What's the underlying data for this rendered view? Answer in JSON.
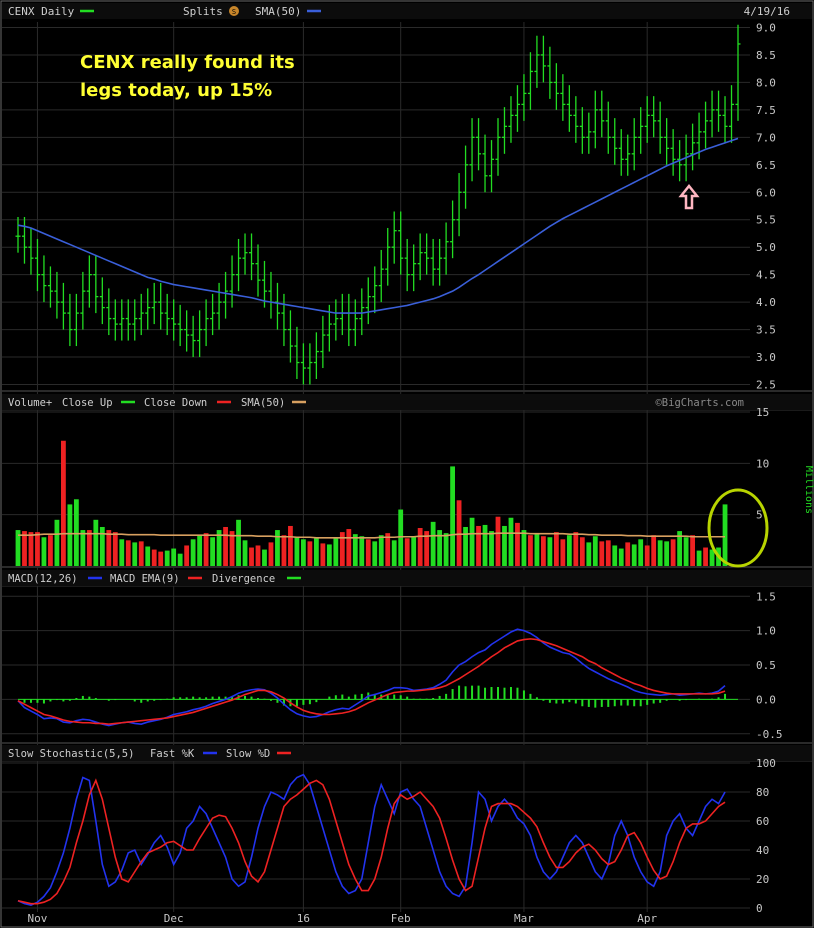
{
  "header": {
    "title": "CENX Daily",
    "splits_label": "Splits",
    "splits_badge": "S",
    "sma_label": "SMA(50)",
    "date": "4/19/16"
  },
  "annotation": {
    "line1": "CENX really found its",
    "line2": "legs today, up 15%"
  },
  "volume_header": {
    "title": "Volume+",
    "close_up_label": "Close Up",
    "close_down_label": "Close Down",
    "sma_label": "SMA(50)",
    "watermark": "©BigCharts.com",
    "unit_label": "Millions"
  },
  "macd_header": {
    "title": "MACD(12,26)",
    "ema_label": "MACD EMA(9)",
    "divergence_label": "Divergence"
  },
  "stoch_header": {
    "title": "Slow Stochastic(5,5)",
    "fast_label": "Fast %K",
    "slow_label": "Slow %D"
  },
  "x_axis": {
    "labels": [
      "Nov",
      "Dec",
      "16",
      "Feb",
      "Mar",
      "Apr"
    ],
    "label_index": [
      3,
      24,
      44,
      59,
      78,
      97
    ]
  },
  "colors": {
    "up": "#22dd22",
    "down": "#ee2222",
    "sma": "#3a5fd9",
    "volume_sma": "#d8a060",
    "macd": "#2233ee",
    "signal": "#ee2222",
    "fast_k": "#2233ee",
    "slow_d": "#ee2222",
    "annotation": "#ffff33",
    "arrow": "#ffb6c1",
    "circle": "#b8d400"
  },
  "chart_data": [
    {
      "name": "price",
      "type": "line",
      "title": "CENX Daily",
      "ylim": [
        2.4,
        9.1
      ],
      "yticks": [
        "2.5",
        "3.0",
        "3.5",
        "4.0",
        "4.5",
        "5.0",
        "5.5",
        "6.0",
        "6.5",
        "7.0",
        "7.5",
        "8.0",
        "8.5",
        "9.0"
      ],
      "close": [
        5.2,
        5.0,
        4.8,
        4.5,
        4.3,
        4.2,
        4.0,
        3.8,
        3.5,
        3.8,
        4.2,
        4.5,
        4.1,
        3.9,
        3.7,
        3.6,
        3.7,
        3.6,
        3.7,
        3.8,
        3.9,
        4.0,
        3.8,
        3.7,
        3.6,
        3.5,
        3.4,
        3.3,
        3.5,
        3.7,
        3.8,
        4.0,
        4.2,
        4.5,
        4.8,
        4.9,
        4.7,
        4.4,
        4.2,
        4.0,
        3.8,
        3.5,
        3.2,
        2.9,
        2.8,
        2.9,
        3.1,
        3.4,
        3.6,
        3.7,
        3.8,
        3.5,
        3.7,
        3.9,
        4.1,
        4.3,
        4.6,
        5.0,
        5.3,
        4.8,
        4.5,
        4.7,
        4.9,
        4.8,
        4.6,
        4.8,
        5.1,
        5.5,
        6.0,
        6.5,
        7.0,
        6.7,
        6.3,
        6.6,
        7.0,
        7.2,
        7.4,
        7.6,
        7.8,
        8.2,
        8.5,
        8.3,
        8.0,
        7.8,
        7.6,
        7.4,
        7.2,
        7.0,
        7.1,
        7.5,
        7.3,
        7.0,
        6.8,
        6.6,
        6.7,
        7.0,
        7.2,
        7.4,
        7.3,
        7.0,
        6.8,
        6.6,
        6.5,
        6.7,
        6.9,
        7.1,
        7.3,
        7.5,
        7.4,
        7.2,
        7.6,
        8.7
      ],
      "sma50": [
        5.4,
        5.38,
        5.35,
        5.3,
        5.25,
        5.2,
        5.15,
        5.1,
        5.05,
        5.0,
        4.95,
        4.9,
        4.85,
        4.8,
        4.75,
        4.7,
        4.65,
        4.6,
        4.55,
        4.5,
        4.45,
        4.42,
        4.38,
        4.35,
        4.32,
        4.3,
        4.28,
        4.26,
        4.24,
        4.22,
        4.2,
        4.18,
        4.16,
        4.14,
        4.12,
        4.1,
        4.08,
        4.05,
        4.02,
        4.0,
        3.98,
        3.96,
        3.94,
        3.92,
        3.9,
        3.88,
        3.86,
        3.84,
        3.82,
        3.8,
        3.8,
        3.8,
        3.8,
        3.8,
        3.82,
        3.84,
        3.86,
        3.88,
        3.9,
        3.92,
        3.94,
        3.97,
        4.0,
        4.03,
        4.06,
        4.1,
        4.15,
        4.2,
        4.27,
        4.35,
        4.43,
        4.5,
        4.58,
        4.66,
        4.74,
        4.82,
        4.9,
        4.98,
        5.06,
        5.14,
        5.22,
        5.3,
        5.38,
        5.45,
        5.52,
        5.58,
        5.64,
        5.7,
        5.76,
        5.82,
        5.88,
        5.94,
        6.0,
        6.06,
        6.12,
        6.18,
        6.24,
        6.3,
        6.36,
        6.42,
        6.48,
        6.53,
        6.58,
        6.63,
        6.68,
        6.73,
        6.78,
        6.82,
        6.86,
        6.9,
        6.94,
        6.98
      ]
    },
    {
      "name": "volume",
      "type": "bar",
      "unit": "Millions",
      "ylim": [
        0,
        15
      ],
      "yticks": [
        "5",
        "10",
        "15"
      ],
      "values": [
        3.5,
        3.4,
        3.3,
        3.3,
        2.8,
        3.0,
        4.5,
        12.2,
        6.0,
        6.5,
        3.5,
        3.5,
        4.5,
        3.8,
        3.5,
        3.3,
        2.6,
        2.5,
        2.3,
        2.4,
        1.9,
        1.6,
        1.4,
        1.5,
        1.7,
        1.2,
        2.0,
        2.6,
        3.0,
        3.2,
        2.8,
        3.5,
        3.8,
        3.4,
        4.5,
        2.5,
        1.8,
        2.0,
        1.6,
        2.3,
        3.5,
        3.0,
        3.9,
        2.8,
        2.6,
        2.4,
        2.7,
        2.2,
        2.1,
        2.8,
        3.3,
        3.6,
        3.1,
        2.9,
        2.6,
        2.4,
        3.0,
        3.2,
        2.5,
        5.5,
        2.7,
        2.9,
        3.7,
        3.4,
        4.3,
        3.5,
        3.2,
        9.7,
        6.4,
        3.8,
        4.7,
        3.9,
        4.0,
        3.4,
        4.8,
        3.9,
        4.7,
        4.2,
        3.5,
        3.0,
        3.1,
        2.9,
        2.8,
        3.3,
        2.6,
        3.0,
        3.3,
        2.8,
        2.3,
        2.9,
        2.4,
        2.5,
        2.0,
        1.7,
        2.3,
        2.1,
        2.6,
        2.0,
        3.0,
        2.5,
        2.4,
        2.6,
        3.4,
        2.8,
        3.0,
        1.5,
        1.8,
        1.6,
        1.8,
        6.0
      ],
      "up": [
        1,
        0,
        0,
        0,
        1,
        0,
        1,
        0,
        1,
        1,
        1,
        0,
        1,
        1,
        0,
        0,
        1,
        0,
        1,
        0,
        1,
        0,
        0,
        1,
        1,
        1,
        0,
        1,
        1,
        0,
        1,
        1,
        0,
        0,
        1,
        1,
        0,
        0,
        1,
        0,
        1,
        0,
        0,
        1,
        1,
        0,
        1,
        0,
        1,
        1,
        0,
        0,
        1,
        1,
        0,
        1,
        1,
        0,
        1,
        1,
        0,
        1,
        0,
        0,
        1,
        1,
        1,
        1,
        0,
        1,
        1,
        0,
        1,
        1,
        0,
        1,
        1,
        0,
        1,
        0,
        1,
        0,
        1,
        0,
        0,
        1,
        0,
        0,
        1,
        1,
        0,
        0,
        1,
        1,
        0,
        1,
        1,
        0,
        0,
        1,
        1,
        0,
        1,
        1,
        0,
        1,
        0,
        1,
        1,
        1
      ],
      "sma50": [
        3.0,
        3.0,
        3.0,
        3.05,
        3.1,
        3.1,
        3.1,
        3.15,
        3.15,
        3.15,
        3.15,
        3.15,
        3.15,
        3.15,
        3.1,
        3.1,
        3.1,
        3.05,
        3.05,
        3.05,
        3.05,
        3.05,
        3.0,
        3.0,
        3.0,
        3.0,
        3.0,
        3.0,
        3.0,
        3.0,
        3.0,
        3.0,
        3.0,
        2.95,
        2.95,
        2.95,
        2.95,
        2.9,
        2.9,
        2.9,
        2.85,
        2.85,
        2.85,
        2.8,
        2.8,
        2.8,
        2.75,
        2.75,
        2.75,
        2.75,
        2.75,
        2.75,
        2.75,
        2.75,
        2.75,
        2.75,
        2.8,
        2.8,
        2.8,
        2.85,
        2.85,
        2.85,
        2.9,
        2.9,
        2.95,
        2.95,
        2.95,
        3.05,
        3.1,
        3.1,
        3.15,
        3.15,
        3.15,
        3.15,
        3.2,
        3.2,
        3.2,
        3.2,
        3.2,
        3.15,
        3.15,
        3.15,
        3.15,
        3.15,
        3.15,
        3.1,
        3.1,
        3.1,
        3.05,
        3.05,
        3.0,
        3.0,
        3.0,
        3.0,
        2.95,
        2.95,
        2.95,
        2.9,
        2.9,
        2.9,
        2.9,
        2.9,
        2.9,
        2.9,
        2.85,
        2.85,
        2.85,
        2.85,
        2.85,
        2.85
      ]
    },
    {
      "name": "macd",
      "type": "line",
      "ylim": [
        -0.62,
        1.62
      ],
      "yticks": [
        "-0.5",
        "0.0",
        "0.5",
        "1.0",
        "1.5"
      ],
      "macd": [
        -0.02,
        -0.12,
        -0.17,
        -0.22,
        -0.28,
        -0.27,
        -0.28,
        -0.33,
        -0.34,
        -0.31,
        -0.29,
        -0.3,
        -0.33,
        -0.36,
        -0.38,
        -0.36,
        -0.34,
        -0.33,
        -0.35,
        -0.36,
        -0.33,
        -0.31,
        -0.29,
        -0.26,
        -0.22,
        -0.2,
        -0.18,
        -0.15,
        -0.13,
        -0.1,
        -0.06,
        -0.03,
        0.0,
        0.04,
        0.09,
        0.12,
        0.14,
        0.15,
        0.14,
        0.09,
        0.02,
        -0.07,
        -0.15,
        -0.21,
        -0.24,
        -0.26,
        -0.25,
        -0.22,
        -0.18,
        -0.15,
        -0.13,
        -0.14,
        -0.08,
        -0.02,
        0.05,
        0.07,
        0.1,
        0.13,
        0.17,
        0.17,
        0.16,
        0.13,
        0.14,
        0.15,
        0.17,
        0.22,
        0.28,
        0.4,
        0.5,
        0.55,
        0.62,
        0.68,
        0.72,
        0.8,
        0.86,
        0.92,
        0.98,
        1.02,
        1.0,
        0.96,
        0.9,
        0.82,
        0.76,
        0.72,
        0.68,
        0.66,
        0.6,
        0.52,
        0.45,
        0.4,
        0.35,
        0.3,
        0.26,
        0.22,
        0.18,
        0.13,
        0.1,
        0.08,
        0.07,
        0.06,
        0.07,
        0.08,
        0.06,
        0.07,
        0.08,
        0.09,
        0.08,
        0.09,
        0.12,
        0.2
      ],
      "signal": [
        -0.02,
        -0.07,
        -0.12,
        -0.17,
        -0.22,
        -0.24,
        -0.27,
        -0.3,
        -0.32,
        -0.33,
        -0.34,
        -0.34,
        -0.35,
        -0.35,
        -0.36,
        -0.35,
        -0.34,
        -0.33,
        -0.32,
        -0.31,
        -0.3,
        -0.29,
        -0.28,
        -0.27,
        -0.25,
        -0.23,
        -0.21,
        -0.19,
        -0.16,
        -0.13,
        -0.1,
        -0.07,
        -0.04,
        -0.01,
        0.03,
        0.07,
        0.1,
        0.13,
        0.13,
        0.11,
        0.07,
        0.02,
        -0.05,
        -0.11,
        -0.16,
        -0.19,
        -0.21,
        -0.22,
        -0.22,
        -0.21,
        -0.2,
        -0.18,
        -0.15,
        -0.1,
        -0.05,
        -0.01,
        0.03,
        0.07,
        0.1,
        0.11,
        0.12,
        0.12,
        0.13,
        0.14,
        0.15,
        0.17,
        0.2,
        0.25,
        0.3,
        0.36,
        0.42,
        0.48,
        0.55,
        0.62,
        0.68,
        0.75,
        0.8,
        0.85,
        0.87,
        0.88,
        0.87,
        0.84,
        0.81,
        0.78,
        0.74,
        0.7,
        0.66,
        0.62,
        0.56,
        0.52,
        0.46,
        0.41,
        0.36,
        0.31,
        0.27,
        0.23,
        0.2,
        0.16,
        0.13,
        0.11,
        0.09,
        0.08,
        0.08,
        0.08,
        0.08,
        0.08,
        0.08,
        0.08,
        0.09,
        0.12
      ],
      "divergence": [
        0.0,
        -0.05,
        -0.05,
        -0.05,
        -0.06,
        -0.03,
        -0.01,
        -0.03,
        -0.02,
        0.02,
        0.05,
        0.04,
        0.02,
        0.0,
        -0.02,
        -0.01,
        0.0,
        0.0,
        -0.03,
        -0.05,
        -0.03,
        -0.02,
        -0.01,
        0.01,
        0.03,
        0.03,
        0.03,
        0.04,
        0.03,
        0.03,
        0.04,
        0.04,
        0.04,
        0.05,
        0.06,
        0.05,
        0.04,
        0.02,
        0.01,
        -0.02,
        -0.05,
        -0.09,
        -0.1,
        -0.1,
        -0.08,
        -0.07,
        -0.04,
        0.0,
        0.04,
        0.06,
        0.07,
        0.04,
        0.07,
        0.08,
        0.1,
        0.08,
        0.07,
        0.06,
        0.07,
        0.06,
        0.04,
        0.01,
        0.01,
        0.01,
        0.02,
        0.05,
        0.08,
        0.15,
        0.2,
        0.19,
        0.2,
        0.2,
        0.17,
        0.18,
        0.18,
        0.17,
        0.18,
        0.17,
        0.13,
        0.08,
        0.03,
        -0.02,
        -0.05,
        -0.06,
        -0.06,
        -0.04,
        -0.06,
        -0.1,
        -0.11,
        -0.12,
        -0.11,
        -0.11,
        -0.1,
        -0.09,
        -0.09,
        -0.1,
        -0.1,
        -0.08,
        -0.06,
        -0.05,
        -0.02,
        0.0,
        -0.02,
        -0.01,
        0.0,
        0.01,
        0.0,
        0.01,
        0.03,
        0.08
      ]
    },
    {
      "name": "stochastic",
      "type": "line",
      "ylim": [
        0,
        100
      ],
      "yticks": [
        "0",
        "20",
        "40",
        "60",
        "80",
        "100"
      ],
      "fast_k": [
        5,
        3,
        2,
        4,
        8,
        14,
        25,
        38,
        55,
        75,
        90,
        88,
        60,
        30,
        15,
        18,
        26,
        38,
        40,
        30,
        37,
        45,
        50,
        42,
        30,
        38,
        55,
        60,
        70,
        65,
        55,
        45,
        35,
        20,
        15,
        18,
        35,
        55,
        70,
        80,
        78,
        75,
        85,
        90,
        92,
        85,
        70,
        55,
        40,
        25,
        15,
        10,
        12,
        20,
        45,
        70,
        85,
        75,
        65,
        80,
        82,
        75,
        70,
        55,
        40,
        25,
        15,
        10,
        8,
        15,
        45,
        80,
        75,
        60,
        70,
        75,
        70,
        62,
        58,
        50,
        35,
        25,
        20,
        25,
        35,
        45,
        50,
        45,
        35,
        25,
        20,
        30,
        50,
        60,
        50,
        35,
        25,
        18,
        15,
        25,
        50,
        60,
        65,
        55,
        50,
        60,
        70,
        75,
        72,
        80
      ],
      "slow_d": [
        5,
        4,
        3,
        3,
        4,
        6,
        10,
        18,
        28,
        45,
        60,
        78,
        88,
        75,
        55,
        35,
        20,
        18,
        25,
        32,
        38,
        40,
        42,
        45,
        46,
        43,
        40,
        40,
        48,
        55,
        62,
        64,
        63,
        55,
        45,
        32,
        22,
        18,
        25,
        40,
        55,
        70,
        75,
        78,
        82,
        86,
        88,
        85,
        75,
        60,
        45,
        30,
        20,
        12,
        12,
        20,
        35,
        55,
        72,
        78,
        75,
        77,
        80,
        75,
        70,
        62,
        48,
        33,
        20,
        12,
        15,
        35,
        55,
        70,
        72,
        72,
        72,
        70,
        66,
        62,
        56,
        45,
        35,
        28,
        28,
        32,
        38,
        42,
        44,
        40,
        34,
        30,
        32,
        40,
        50,
        52,
        45,
        35,
        26,
        20,
        22,
        32,
        45,
        55,
        58,
        58,
        60,
        65,
        70,
        73
      ]
    }
  ]
}
